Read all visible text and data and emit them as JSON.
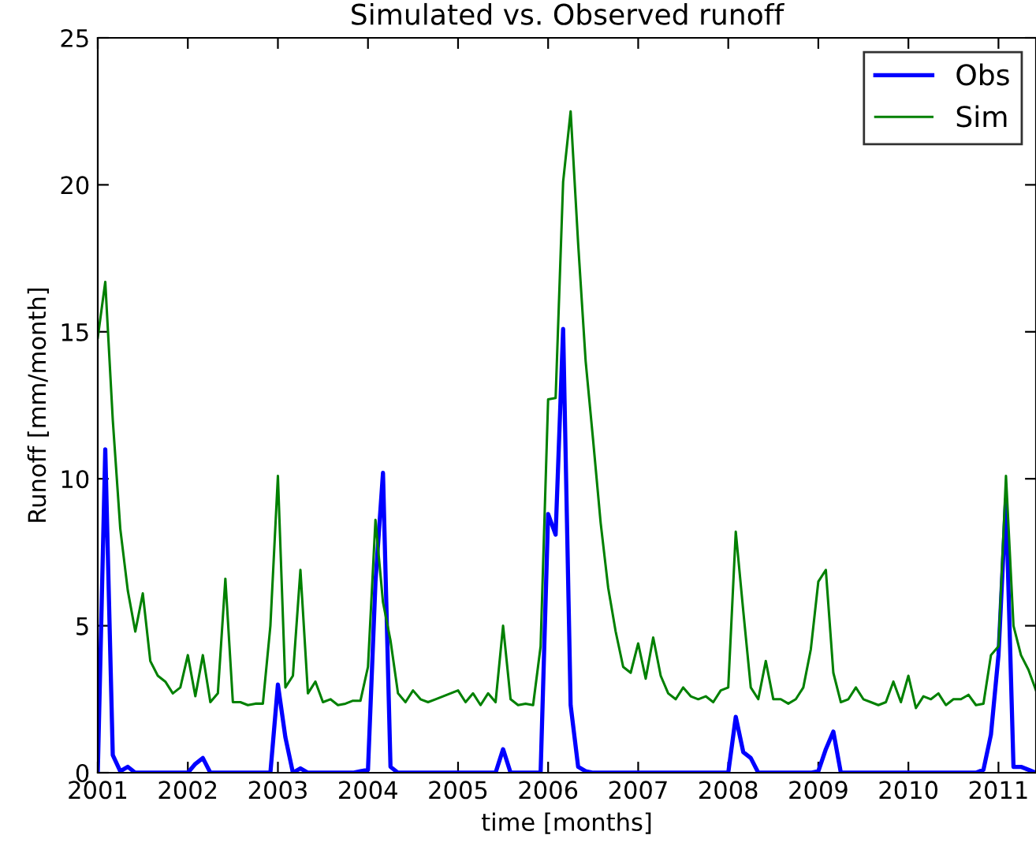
{
  "chart_data": {
    "type": "line",
    "title": "Simulated vs. Observed runoff",
    "xlabel": "time [months]",
    "ylabel": "Runoff [mm/month]",
    "x": [
      "2001-01",
      "2001-02",
      "2001-03",
      "2001-04",
      "2001-05",
      "2001-06",
      "2001-07",
      "2001-08",
      "2001-09",
      "2001-10",
      "2001-11",
      "2001-12",
      "2002-01",
      "2002-02",
      "2002-03",
      "2002-04",
      "2002-05",
      "2002-06",
      "2002-07",
      "2002-08",
      "2002-09",
      "2002-10",
      "2002-11",
      "2002-12",
      "2003-01",
      "2003-02",
      "2003-03",
      "2003-04",
      "2003-05",
      "2003-06",
      "2003-07",
      "2003-08",
      "2003-09",
      "2003-10",
      "2003-11",
      "2003-12",
      "2004-01",
      "2004-02",
      "2004-03",
      "2004-04",
      "2004-05",
      "2004-06",
      "2004-07",
      "2004-08",
      "2004-09",
      "2004-10",
      "2004-11",
      "2004-12",
      "2005-01",
      "2005-02",
      "2005-03",
      "2005-04",
      "2005-05",
      "2005-06",
      "2005-07",
      "2005-08",
      "2005-09",
      "2005-10",
      "2005-11",
      "2005-12",
      "2006-01",
      "2006-02",
      "2006-03",
      "2006-04",
      "2006-05",
      "2006-06",
      "2006-07",
      "2006-08",
      "2006-09",
      "2006-10",
      "2006-11",
      "2006-12",
      "2007-01",
      "2007-02",
      "2007-03",
      "2007-04",
      "2007-05",
      "2007-06",
      "2007-07",
      "2007-08",
      "2007-09",
      "2007-10",
      "2007-11",
      "2007-12",
      "2008-01",
      "2008-02",
      "2008-03",
      "2008-04",
      "2008-05",
      "2008-06",
      "2008-07",
      "2008-08",
      "2008-09",
      "2008-10",
      "2008-11",
      "2008-12",
      "2009-01",
      "2009-02",
      "2009-03",
      "2009-04",
      "2009-05",
      "2009-06",
      "2009-07",
      "2009-08",
      "2009-09",
      "2009-10",
      "2009-11",
      "2009-12",
      "2010-01",
      "2010-02",
      "2010-03",
      "2010-04",
      "2010-05",
      "2010-06",
      "2010-07",
      "2010-08",
      "2010-09",
      "2010-10",
      "2010-11",
      "2010-12",
      "2011-01",
      "2011-02",
      "2011-03",
      "2011-04",
      "2011-05",
      "2011-06"
    ],
    "series": [
      {
        "name": "Obs",
        "color": "#0000ff",
        "values": [
          0,
          11.0,
          0.6,
          0.05,
          0.2,
          0,
          0,
          0,
          0,
          0,
          0,
          0,
          0,
          0.3,
          0.5,
          0,
          0,
          0,
          0,
          0,
          0,
          0,
          0,
          0,
          3.0,
          1.2,
          0,
          0.15,
          0,
          0,
          0,
          0,
          0,
          0,
          0,
          0.05,
          0.1,
          6.5,
          10.2,
          0.2,
          0,
          0,
          0,
          0,
          0,
          0,
          0,
          0,
          0,
          0,
          0,
          0,
          0,
          0,
          0.8,
          0,
          0,
          0,
          0,
          0,
          8.8,
          8.1,
          15.1,
          2.3,
          0.2,
          0.05,
          0,
          0,
          0,
          0,
          0,
          0,
          0,
          0,
          0,
          0,
          0,
          0,
          0,
          0,
          0,
          0,
          0,
          0,
          0,
          1.9,
          0.7,
          0.5,
          0,
          0,
          0,
          0,
          0,
          0,
          0,
          0,
          0.05,
          0.8,
          1.4,
          0,
          0,
          0,
          0,
          0,
          0,
          0,
          0,
          0,
          0,
          0,
          0,
          0,
          0,
          0,
          0,
          0,
          0,
          0,
          0.1,
          1.3,
          4.0,
          9.3,
          0.2,
          0.2,
          0.1,
          0
        ]
      },
      {
        "name": "Sim",
        "color": "#008000",
        "values": [
          14.8,
          16.7,
          12,
          8.3,
          6.2,
          4.8,
          6.1,
          3.8,
          3.3,
          3.1,
          2.7,
          2.9,
          4.0,
          2.6,
          4.0,
          2.4,
          2.7,
          6.6,
          2.4,
          2.4,
          2.3,
          2.35,
          2.35,
          5.0,
          10.1,
          2.9,
          3.3,
          6.9,
          2.7,
          3.1,
          2.4,
          2.5,
          2.3,
          2.35,
          2.45,
          2.45,
          3.6,
          8.6,
          5.8,
          4.5,
          2.7,
          2.4,
          2.8,
          2.5,
          2.4,
          2.5,
          2.6,
          2.7,
          2.8,
          2.4,
          2.7,
          2.3,
          2.7,
          2.4,
          5.0,
          2.5,
          2.3,
          2.35,
          2.3,
          4.3,
          12.7,
          12.75,
          20.1,
          22.5,
          18,
          14,
          11.3,
          8.5,
          6.3,
          4.8,
          3.6,
          3.4,
          4.4,
          3.2,
          4.6,
          3.3,
          2.7,
          2.5,
          2.9,
          2.6,
          2.5,
          2.6,
          2.4,
          2.8,
          2.9,
          8.2,
          5.5,
          2.9,
          2.5,
          3.8,
          2.5,
          2.5,
          2.35,
          2.5,
          2.9,
          4.2,
          6.5,
          6.9,
          3.4,
          2.4,
          2.5,
          2.9,
          2.5,
          2.4,
          2.3,
          2.4,
          3.1,
          2.4,
          3.3,
          2.2,
          2.6,
          2.5,
          2.7,
          2.3,
          2.5,
          2.5,
          2.65,
          2.3,
          2.35,
          4.0,
          4.3,
          10.1,
          5.0,
          4.0,
          3.5,
          2.8
        ]
      }
    ],
    "xlim": [
      "2001-01",
      "2011-06"
    ],
    "xticks": [
      "2001",
      "2002",
      "2003",
      "2004",
      "2005",
      "2006",
      "2007",
      "2008",
      "2009",
      "2010",
      "2011"
    ],
    "ylim": [
      0,
      25
    ],
    "yticks": [
      0,
      5,
      10,
      15,
      20,
      25
    ],
    "legend": "top right",
    "grid": false,
    "marker": "none",
    "line_style": "solid"
  }
}
